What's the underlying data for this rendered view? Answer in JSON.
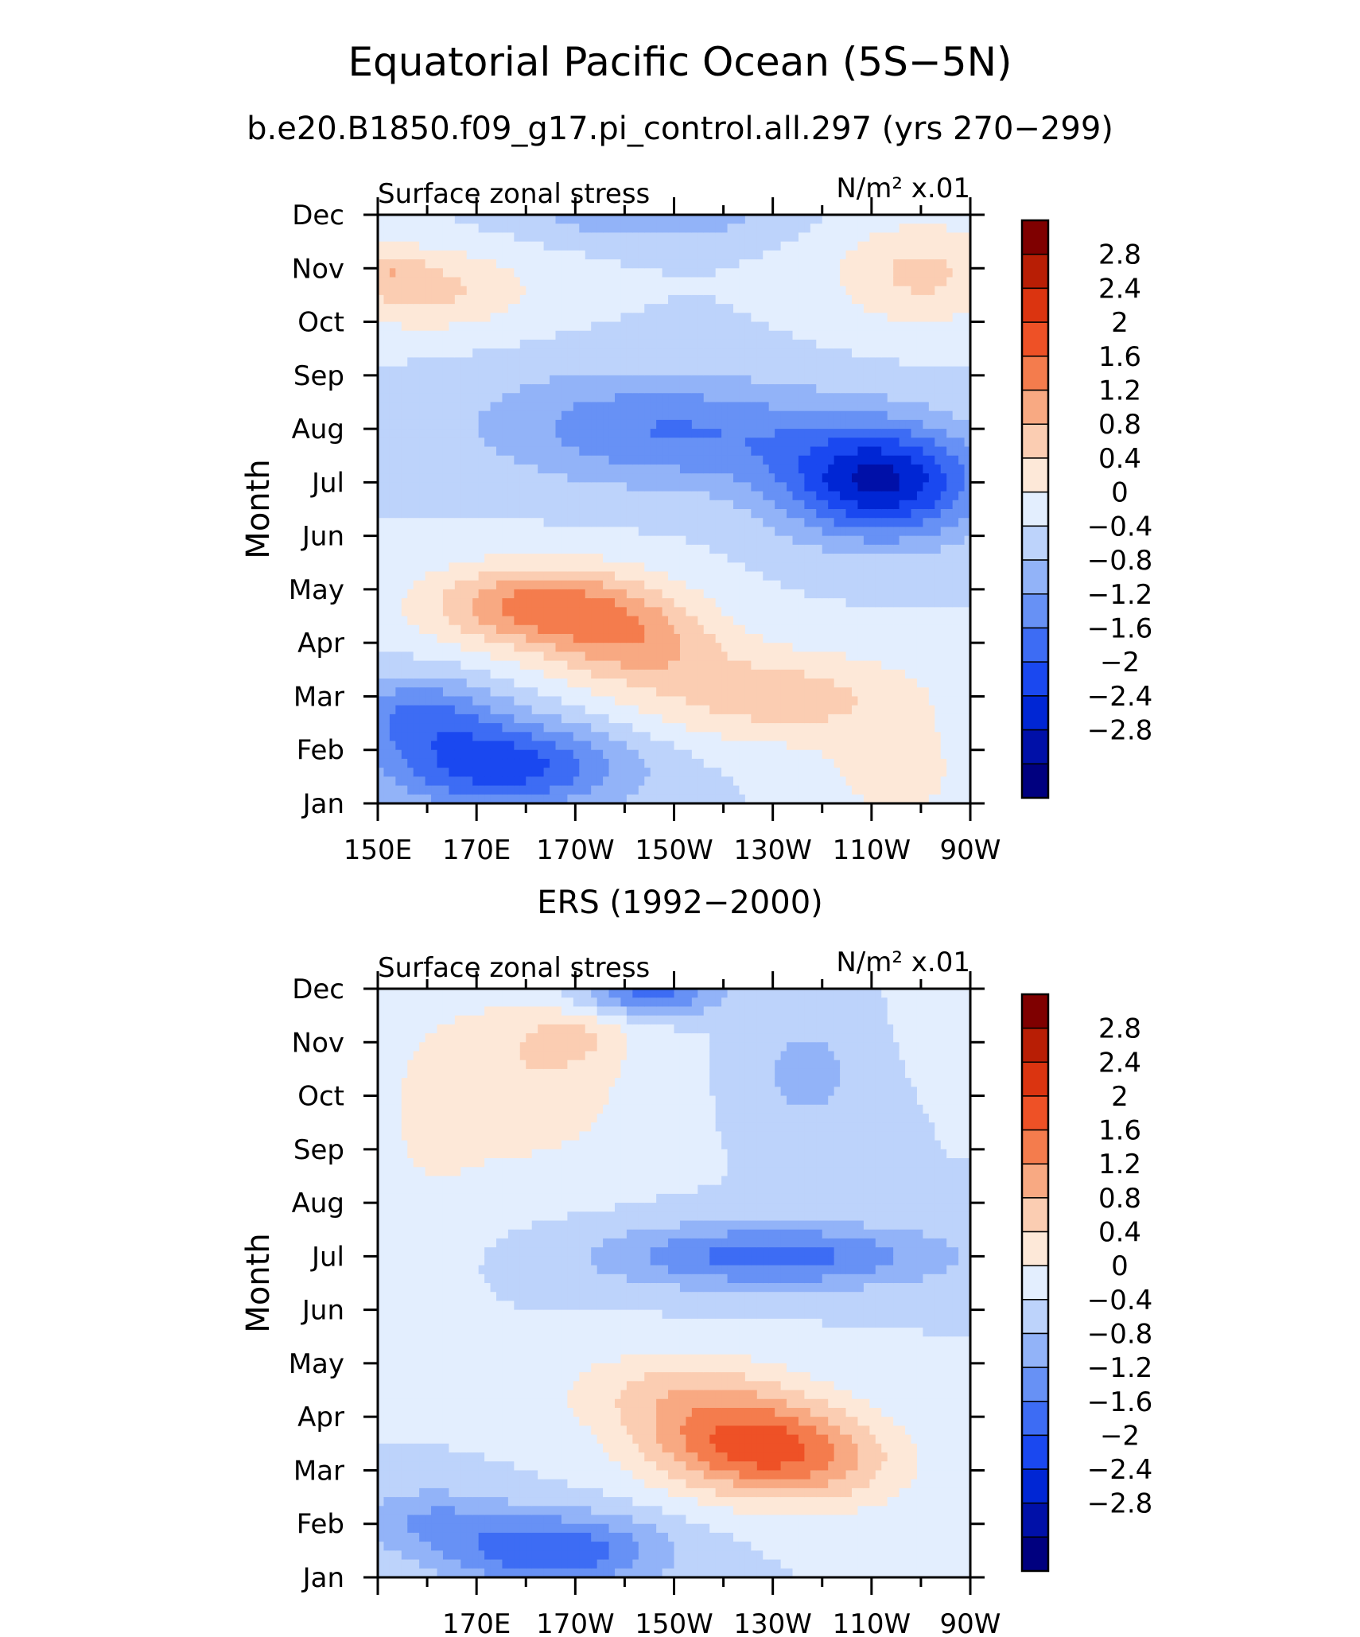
{
  "figure": {
    "title": "Equatorial Pacific Ocean (5S−5N)"
  },
  "colorbar": {
    "levels": [
      -2.8,
      -2.4,
      -2,
      -1.6,
      -1.2,
      -0.8,
      -0.4,
      0,
      0.4,
      0.8,
      1.2,
      1.6,
      2,
      2.4,
      2.8
    ],
    "labels": [
      "2.8",
      "2.4",
      "2",
      "1.6",
      "1.2",
      "0.8",
      "0.4",
      "0",
      "−0.4",
      "−0.8",
      "−1.2",
      "−1.6",
      "−2",
      "−2.4",
      "−2.8"
    ],
    "colors": [
      "#00007f",
      "#0010a8",
      "#0026d4",
      "#1a48f0",
      "#3d6cf4",
      "#6791f5",
      "#92b3f8",
      "#bdd3fb",
      "#e3eefe",
      "#fde8d8",
      "#fbcdb2",
      "#f8a982",
      "#f47c4d",
      "#ee5126",
      "#db3410",
      "#b81e05",
      "#7f0000"
    ]
  },
  "chart_data": [
    {
      "type": "heatmap",
      "subtitle": "b.e20.B1850.f09_g17.pi_control.all.297 (yrs 270−299)",
      "left_label": "Surface zonal stress",
      "units": "N/m² x.01",
      "ylabel": "Month",
      "x_tick_labels": [
        "150E",
        "170E",
        "170W",
        "150W",
        "130W",
        "110W",
        "90W"
      ],
      "y_tick_labels": [
        "Jan",
        "Feb",
        "Mar",
        "Apr",
        "May",
        "Jun",
        "Jul",
        "Aug",
        "Sep",
        "Oct",
        "Nov",
        "Dec"
      ],
      "xlim": [
        150,
        270
      ],
      "x_unit": "degrees east longitude",
      "features": [
        {
          "kind": "gauss",
          "lon": 252,
          "month": 7.0,
          "amp": -2.4,
          "slon": 20,
          "smon": 1.05
        },
        {
          "kind": "gauss",
          "lon": 215,
          "month": 7.9,
          "amp": -1.0,
          "slon": 32,
          "smon": 1.0
        },
        {
          "kind": "gauss",
          "lon": 190,
          "month": 8.2,
          "amp": -0.4,
          "slon": 30,
          "smon": 1.1
        },
        {
          "kind": "gauss",
          "lon": 175,
          "month": 1.7,
          "amp": -1.85,
          "slon": 25,
          "smon": 0.85
        },
        {
          "kind": "gauss",
          "lon": 158,
          "month": 2.7,
          "amp": -1.1,
          "slon": 16,
          "smon": 0.7
        },
        {
          "kind": "gauss",
          "lon": 205,
          "month": 12.0,
          "amp": -0.75,
          "slon": 25,
          "smon": 0.5
        },
        {
          "kind": "gauss",
          "lon": 183,
          "month": 4.7,
          "amp": 1.75,
          "slon": 23,
          "smon": 0.8
        },
        {
          "kind": "gauss",
          "lon": 202,
          "month": 4.0,
          "amp": 1.1,
          "slon": 18,
          "smon": 0.8
        },
        {
          "kind": "gauss",
          "lon": 230,
          "month": 3.0,
          "amp": 1.0,
          "slon": 30,
          "smon": 0.9
        },
        {
          "kind": "gauss",
          "lon": 160,
          "month": 10.6,
          "amp": 0.9,
          "slon": 22,
          "smon": 0.8
        },
        {
          "kind": "gauss",
          "lon": 152,
          "month": 11.0,
          "amp": 0.55,
          "slon": 7,
          "smon": 0.4
        },
        {
          "kind": "gauss",
          "lon": 260,
          "month": 10.9,
          "amp": 0.9,
          "slon": 18,
          "smon": 1.0
        },
        {
          "kind": "gauss",
          "lon": 255,
          "month": 1.5,
          "amp": 0.55,
          "slon": 16,
          "smon": 1.1
        }
      ]
    },
    {
      "type": "heatmap",
      "subtitle": "ERS (1992−2000)",
      "left_label": "Surface zonal stress",
      "units": "N/m² x.01",
      "ylabel": "Month",
      "x_tick_labels": [
        "170E",
        "170W",
        "150W",
        "130W",
        "110W",
        "90W"
      ],
      "y_tick_labels": [
        "Jan",
        "Feb",
        "Mar",
        "Apr",
        "May",
        "Jun",
        "Jul",
        "Aug",
        "Sep",
        "Oct",
        "Nov",
        "Dec"
      ],
      "xlim": [
        150,
        270
      ],
      "x_unit": "degrees east longitude",
      "features": [
        {
          "kind": "gauss",
          "lon": 225,
          "month": 3.5,
          "amp": 1.9,
          "slon": 22,
          "smon": 0.9
        },
        {
          "kind": "gauss",
          "lon": 240,
          "month": 3.0,
          "amp": 0.7,
          "slon": 20,
          "smon": 0.9
        },
        {
          "kind": "gauss",
          "lon": 210,
          "month": 4.5,
          "amp": 0.8,
          "slon": 24,
          "smon": 0.8
        },
        {
          "kind": "gauss",
          "lon": 185,
          "month": 1.5,
          "amp": -1.6,
          "slon": 22,
          "smon": 0.7
        },
        {
          "kind": "gauss",
          "lon": 160,
          "month": 2.1,
          "amp": -0.7,
          "slon": 15,
          "smon": 0.6
        },
        {
          "kind": "gauss",
          "lon": 230,
          "month": 7.0,
          "amp": -1.4,
          "slon": 34,
          "smon": 0.6
        },
        {
          "kind": "gauss",
          "lon": 205,
          "month": 11.9,
          "amp": -1.4,
          "slon": 14,
          "smon": 0.4
        },
        {
          "kind": "gauss",
          "lon": 237,
          "month": 10.4,
          "amp": -0.55,
          "slon": 12,
          "smon": 1.1
        },
        {
          "kind": "gauss",
          "lon": 180,
          "month": 10.3,
          "amp": 0.75,
          "slon": 22,
          "smon": 1.7
        },
        {
          "kind": "gauss",
          "lon": 190,
          "month": 11.1,
          "amp": 0.5,
          "slon": 10,
          "smon": 0.5
        },
        {
          "kind": "gauss",
          "lon": 160,
          "month": 9.0,
          "amp": 0.3,
          "slon": 12,
          "smon": 2.3
        },
        {
          "kind": "gauss",
          "lon": 265,
          "month": 11.5,
          "amp": 0.25,
          "slon": 8,
          "smon": 1.0
        }
      ]
    }
  ]
}
